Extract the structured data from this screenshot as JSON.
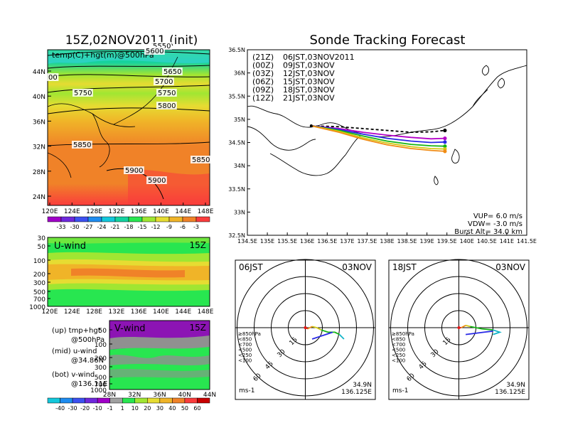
{
  "left_title": "15Z,02NOV2011 (init)",
  "right_title": "Sonde Tracking Forecast",
  "map_panel": {
    "inner_label": "temp(C)+hgt(m)@500hPa",
    "lat_ticks": [
      "44N",
      "40N",
      "36N",
      "32N",
      "28N",
      "24N"
    ],
    "lon_ticks": [
      "120E",
      "124E",
      "128E",
      "132E",
      "136E",
      "140E",
      "144E",
      "148E"
    ],
    "contour_labels": [
      "5650",
      "5700",
      "5750",
      "5750",
      "5800",
      "5850",
      "5850",
      "5900",
      "5900",
      "5550",
      "5600",
      "00"
    ],
    "colorbar_ticks": [
      "-33",
      "-30",
      "-27",
      "-24",
      "-21",
      "-18",
      "-15",
      "-12",
      "-9",
      "-6",
      "-3"
    ],
    "colorbar_colors": [
      "#a000c8",
      "#6e28dc",
      "#3c50f0",
      "#1e8cf0",
      "#14c8dc",
      "#14d2a0",
      "#28e650",
      "#a0e632",
      "#e6dc32",
      "#f0b428",
      "#f08228",
      "#fa3c3c"
    ]
  },
  "uwind_panel": {
    "label": "U-wind",
    "time": "15Z",
    "y_ticks": [
      "30",
      "50",
      "100",
      "200",
      "300",
      "500",
      "700",
      "1000"
    ],
    "x_ticks": [
      "120E",
      "124E",
      "128E",
      "132E",
      "136E",
      "140E",
      "144E",
      "148E"
    ]
  },
  "vwind_panel": {
    "label": "V-wind",
    "time": "15Z",
    "y_ticks": [
      "50",
      "100",
      "200",
      "300",
      "500",
      "700",
      "1000"
    ],
    "x_ticks": [
      "28N",
      "32N",
      "36N",
      "40N",
      "44N"
    ]
  },
  "side_notes": [
    {
      "line1": "(up) tmp+hgt",
      "line2": "@500hPa"
    },
    {
      "line1": "(mid) u-wind",
      "line2": "@34.86N"
    },
    {
      "line1": "(bot) v-wind",
      "line2": "@136.11E"
    }
  ],
  "wind_colorbar": {
    "ticks": [
      "-40",
      "-30",
      "-20",
      "-10",
      "-1",
      "1",
      "10",
      "20",
      "30",
      "40",
      "50",
      "60"
    ],
    "colors": [
      "#14c8dc",
      "#1e8cf0",
      "#3c50f0",
      "#6e28dc",
      "#a000c8",
      "#a0a0a0",
      "#28e650",
      "#a0e632",
      "#e6dc32",
      "#f0b428",
      "#f08228",
      "#fa3c3c",
      "#c80000"
    ]
  },
  "track_panel": {
    "lat_ticks": [
      "36.5N",
      "36N",
      "35.5N",
      "35N",
      "34.5N",
      "34N",
      "33.5N",
      "33N",
      "32.5N"
    ],
    "lon_ticks": [
      "134.5E",
      "135E",
      "135.5E",
      "136E",
      "136.5E",
      "137E",
      "137.5E",
      "138E",
      "138.5E",
      "139E",
      "139.5E",
      "140E",
      "140.5E",
      "141E",
      "141.5E"
    ],
    "lat_range": [
      32.5,
      36.5
    ],
    "lon_range": [
      134.5,
      141.5
    ],
    "launches": [
      {
        "code": "(21Z)",
        "label": "06JST,03NOV2011",
        "color": "#000000"
      },
      {
        "code": "(00Z)",
        "label": "09JST,03NOV",
        "color": "#b400c8"
      },
      {
        "code": "(03Z)",
        "label": "12JST,03NOV",
        "color": "#2828e6"
      },
      {
        "code": "(06Z)",
        "label": "15JST,03NOV",
        "color": "#14b414"
      },
      {
        "code": "(09Z)",
        "label": "18JST,03NOV",
        "color": "#d2c814"
      },
      {
        "code": "(12Z)",
        "label": "21JST,03NOV",
        "color": "#f08c14"
      }
    ],
    "info": [
      "VUP= 6.0 m/s",
      "VDW= -3.0 m/s",
      "Burst Alt= 34.0 km"
    ]
  },
  "hodographs": [
    {
      "time": "06JST",
      "date": "03NOV",
      "rings": [
        "15",
        "30",
        "45",
        "60"
      ],
      "unit": "ms-1",
      "lat": "34.9N",
      "lon": "136.125E",
      "legend": [
        {
          "t": "≥850hPa",
          "c": "#e61414"
        },
        {
          "t": "<850",
          "c": "#f08c14"
        },
        {
          "t": "<700",
          "c": "#d2c814"
        },
        {
          "t": "<500",
          "c": "#14b414"
        },
        {
          "t": "<250",
          "c": "#14b4c8"
        },
        {
          "t": "<100",
          "c": "#2828e6"
        }
      ]
    },
    {
      "time": "18JST",
      "date": "03NOV",
      "rings": [
        "15",
        "30",
        "45",
        "60"
      ],
      "unit": "ms-1",
      "lat": "34.9N",
      "lon": "136.125E",
      "legend": [
        {
          "t": "≥850hPa",
          "c": "#e61414"
        },
        {
          "t": "<850",
          "c": "#f08c14"
        },
        {
          "t": "<700",
          "c": "#d2c814"
        },
        {
          "t": "<500",
          "c": "#14b414"
        },
        {
          "t": "<250",
          "c": "#14b4c8"
        },
        {
          "t": "<100",
          "c": "#2828e6"
        }
      ]
    }
  ],
  "chart_data": [
    {
      "type": "heatmap",
      "title": "15Z,02NOV2011 (init)",
      "label": "temp(C)+hgt(m)@500hPa",
      "x": "120E-148E",
      "y": "24N-44N",
      "levels": [
        -33,
        -30,
        -27,
        -24,
        -21,
        -18,
        -15,
        -12,
        -9,
        -6,
        -3
      ]
    },
    {
      "type": "heatmap",
      "label": "U-wind",
      "time": "15Z",
      "x": "120E-148E",
      "y": "1000-30 hPa"
    },
    {
      "type": "heatmap",
      "label": "V-wind",
      "time": "15Z",
      "x": "28N-44N",
      "y": "1000-50 hPa",
      "levels": [
        -40,
        -30,
        -20,
        -10,
        -1,
        1,
        10,
        20,
        30,
        40,
        50,
        60
      ]
    },
    {
      "type": "line",
      "title": "Sonde Tracking Forecast",
      "xlim": [
        134.5,
        141.5
      ],
      "ylim": [
        32.5,
        36.5
      ],
      "series": [
        {
          "name": "(21Z) 06JST,03NOV2011",
          "x": [
            136.1,
            136.8,
            137.4,
            138.0,
            138.6,
            139.1,
            139.45
          ],
          "y": [
            34.86,
            34.84,
            34.8,
            34.76,
            34.72,
            34.73,
            34.76
          ]
        },
        {
          "name": "(00Z) 09JST,03NOV",
          "x": [
            136.1,
            136.8,
            137.4,
            138.0,
            138.6,
            139.1,
            139.45
          ],
          "y": [
            34.86,
            34.8,
            34.72,
            34.66,
            34.61,
            34.58,
            34.59
          ]
        },
        {
          "name": "(03Z) 12JST,03NOV",
          "x": [
            136.1,
            136.8,
            137.4,
            138.0,
            138.6,
            139.1,
            139.45
          ],
          "y": [
            34.86,
            34.78,
            34.68,
            34.59,
            34.53,
            34.5,
            34.51
          ]
        },
        {
          "name": "(06Z) 15JST,03NOV",
          "x": [
            136.1,
            136.8,
            137.4,
            138.0,
            138.6,
            139.1,
            139.45
          ],
          "y": [
            34.86,
            34.76,
            34.64,
            34.53,
            34.46,
            34.43,
            34.42
          ]
        },
        {
          "name": "(09Z) 18JST,03NOV",
          "x": [
            136.1,
            136.8,
            137.4,
            138.0,
            138.6,
            139.1,
            139.45
          ],
          "y": [
            34.86,
            34.74,
            34.6,
            34.49,
            34.41,
            34.37,
            34.36
          ]
        },
        {
          "name": "(12Z) 21JST,03NOV",
          "x": [
            136.1,
            136.8,
            137.4,
            138.0,
            138.6,
            139.1,
            139.45
          ],
          "y": [
            34.86,
            34.72,
            34.57,
            34.45,
            34.37,
            34.33,
            34.31
          ]
        }
      ]
    },
    {
      "type": "line",
      "title": "06JST 03NOV hodograph",
      "unit": "ms-1",
      "rings": [
        15,
        30,
        45,
        60
      ],
      "series": [
        {
          "name": "≥850hPa",
          "x": [
            0,
            2
          ],
          "y": [
            0,
            -1
          ]
        },
        {
          "name": "<850",
          "x": [
            2,
            4,
            6
          ],
          "y": [
            -1,
            0,
            1
          ]
        },
        {
          "name": "<700",
          "x": [
            6,
            10,
            14
          ],
          "y": [
            1,
            0,
            -2
          ]
        },
        {
          "name": "<500",
          "x": [
            14,
            20,
            26,
            30
          ],
          "y": [
            -2,
            -4,
            -4,
            -6
          ]
        },
        {
          "name": "<250",
          "x": [
            30,
            34,
            30
          ],
          "y": [
            -6,
            -10,
            -6
          ]
        },
        {
          "name": "<100",
          "x": [
            6,
            12,
            18,
            24
          ],
          "y": [
            -10,
            -8,
            -6,
            -4
          ]
        }
      ]
    },
    {
      "type": "line",
      "title": "18JST 03NOV hodograph",
      "unit": "ms-1",
      "rings": [
        15,
        30,
        45,
        60
      ],
      "series": [
        {
          "name": "≥850hPa",
          "x": [
            0,
            2
          ],
          "y": [
            0,
            0
          ]
        },
        {
          "name": "<850",
          "x": [
            2,
            4,
            6
          ],
          "y": [
            0,
            1,
            2
          ]
        },
        {
          "name": "<700",
          "x": [
            6,
            10
          ],
          "y": [
            2,
            1
          ]
        },
        {
          "name": "<500",
          "x": [
            10,
            20,
            30
          ],
          "y": [
            1,
            -1,
            -2
          ]
        },
        {
          "name": "<250",
          "x": [
            30,
            36,
            30
          ],
          "y": [
            -2,
            -4,
            -6
          ]
        },
        {
          "name": "<100",
          "x": [
            6,
            14,
            22,
            30
          ],
          "y": [
            -6,
            -5,
            -4,
            -3
          ]
        }
      ]
    }
  ]
}
